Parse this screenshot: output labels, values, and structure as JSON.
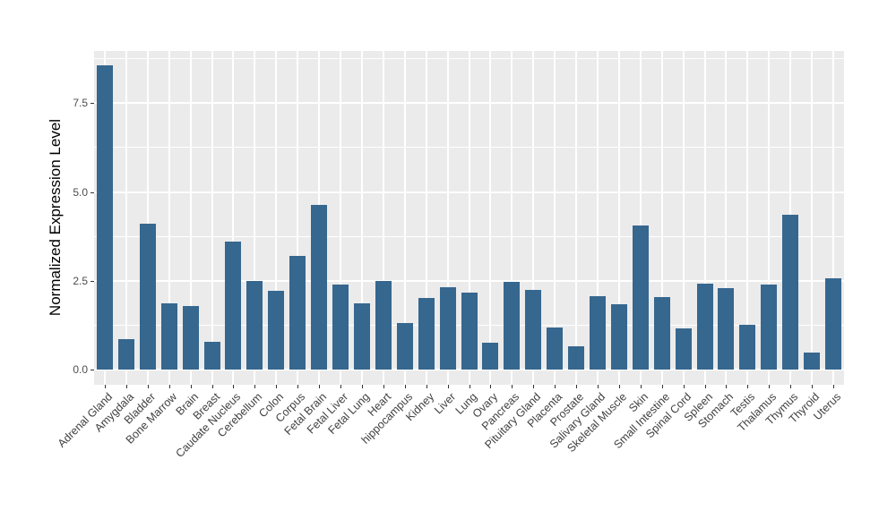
{
  "chart_data": {
    "type": "bar",
    "title": "",
    "xlabel": "",
    "ylabel": "Normalized Expression Level",
    "ylim": [
      -0.43,
      8.97
    ],
    "yticks": [
      0.0,
      2.5,
      5.0,
      7.5
    ],
    "ytick_labels": [
      "0.0",
      "2.5",
      "5.0",
      "7.5"
    ],
    "grid": "on",
    "legend_position": "none",
    "bar_color": "#36678F",
    "panel_bg": "#EBEBEB",
    "gridline_color": "#FFFFFF",
    "categories": [
      "Adrenal Gland",
      "Amygdala",
      "Bladder",
      "Bone Marrow",
      "Brain",
      "Breast",
      "Caudate Nucleus",
      "Cerebellum",
      "Colon",
      "Corpus",
      "Fetal Brain",
      "Fetal Liver",
      "Fetal Lung",
      "Heart",
      "hippocampus",
      "Kidney",
      "Liver",
      "Lung",
      "Ovary",
      "Pancreas",
      "Pituitary Gland",
      "Placenta",
      "Prostate",
      "Salivary Gland",
      "Skeletal Muscle",
      "Skin",
      "Small Intestine",
      "Spinal Cord",
      "Spleen",
      "Stomach",
      "Testis",
      "Thalamus",
      "Thymus",
      "Thyroid",
      "Uterus"
    ],
    "values": [
      8.56,
      0.85,
      4.1,
      1.86,
      1.79,
      0.78,
      3.59,
      2.5,
      2.22,
      3.2,
      4.63,
      2.4,
      1.86,
      2.49,
      1.31,
      2.02,
      2.32,
      2.17,
      0.76,
      2.47,
      2.25,
      1.18,
      0.65,
      2.07,
      1.84,
      4.05,
      2.05,
      1.17,
      2.43,
      2.3,
      1.25,
      2.39,
      4.36,
      0.48,
      2.58
    ]
  }
}
